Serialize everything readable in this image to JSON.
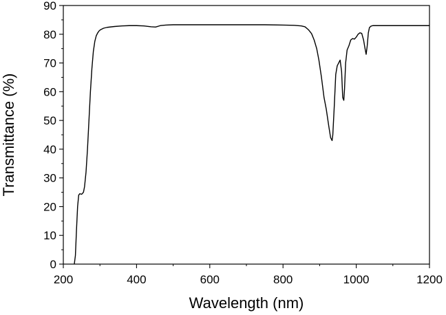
{
  "chart_data": {
    "type": "line",
    "title": "",
    "xlabel": "Wavelength (nm)",
    "ylabel": "Transmittance (%)",
    "xlim": [
      200,
      1200
    ],
    "ylim": [
      0,
      90
    ],
    "xticks": [
      200,
      400,
      600,
      800,
      1000,
      1200
    ],
    "xtick_labels": [
      "200",
      "400",
      "600",
      "800",
      "1000",
      "1200"
    ],
    "yticks": [
      0,
      10,
      20,
      30,
      40,
      50,
      60,
      70,
      80,
      90
    ],
    "ytick_labels": [
      "0",
      "10",
      "20",
      "30",
      "40",
      "50",
      "60",
      "70",
      "80",
      "90"
    ],
    "grid": false,
    "legend": "none",
    "series": [
      {
        "color": "#000000",
        "x": [
          230,
          233,
          236,
          239,
          242,
          245,
          250,
          255,
          258,
          262,
          266,
          270,
          274,
          278,
          282,
          286,
          290,
          294,
          298,
          302,
          310,
          320,
          340,
          360,
          380,
          400,
          420,
          440,
          452,
          465,
          480,
          500,
          550,
          600,
          650,
          700,
          750,
          800,
          830,
          850,
          860,
          870,
          878,
          885,
          892,
          898,
          905,
          912,
          918,
          925,
          930,
          934,
          936,
          940,
          944,
          948,
          952,
          956,
          960,
          963,
          966,
          968,
          971,
          975,
          980,
          985,
          990,
          995,
          1000,
          1005,
          1010,
          1015,
          1020,
          1024,
          1027,
          1030,
          1033,
          1036,
          1040,
          1045,
          1050,
          1060,
          1080,
          1100,
          1150,
          1200
        ],
        "y": [
          0,
          3,
          12,
          20,
          24,
          24.5,
          24.3,
          25,
          27,
          32,
          40,
          50,
          60,
          68,
          74,
          77.5,
          79.5,
          80.5,
          81.2,
          81.6,
          82.1,
          82.4,
          82.7,
          82.9,
          83,
          83,
          82.9,
          82.6,
          82.5,
          83,
          83.2,
          83.3,
          83.3,
          83.3,
          83.3,
          83.3,
          83.3,
          83.2,
          83.1,
          82.9,
          82.6,
          81.5,
          80.2,
          78,
          75,
          71,
          65,
          58,
          54,
          48,
          44,
          43,
          45,
          55,
          66,
          69,
          70,
          71,
          67,
          58,
          57,
          61,
          70,
          74.5,
          76,
          78,
          78.5,
          78.3,
          79,
          80,
          80.5,
          80.3,
          78,
          75,
          73,
          76,
          80.5,
          82.3,
          82.8,
          83,
          83,
          83,
          83,
          83,
          83,
          83
        ]
      }
    ]
  }
}
